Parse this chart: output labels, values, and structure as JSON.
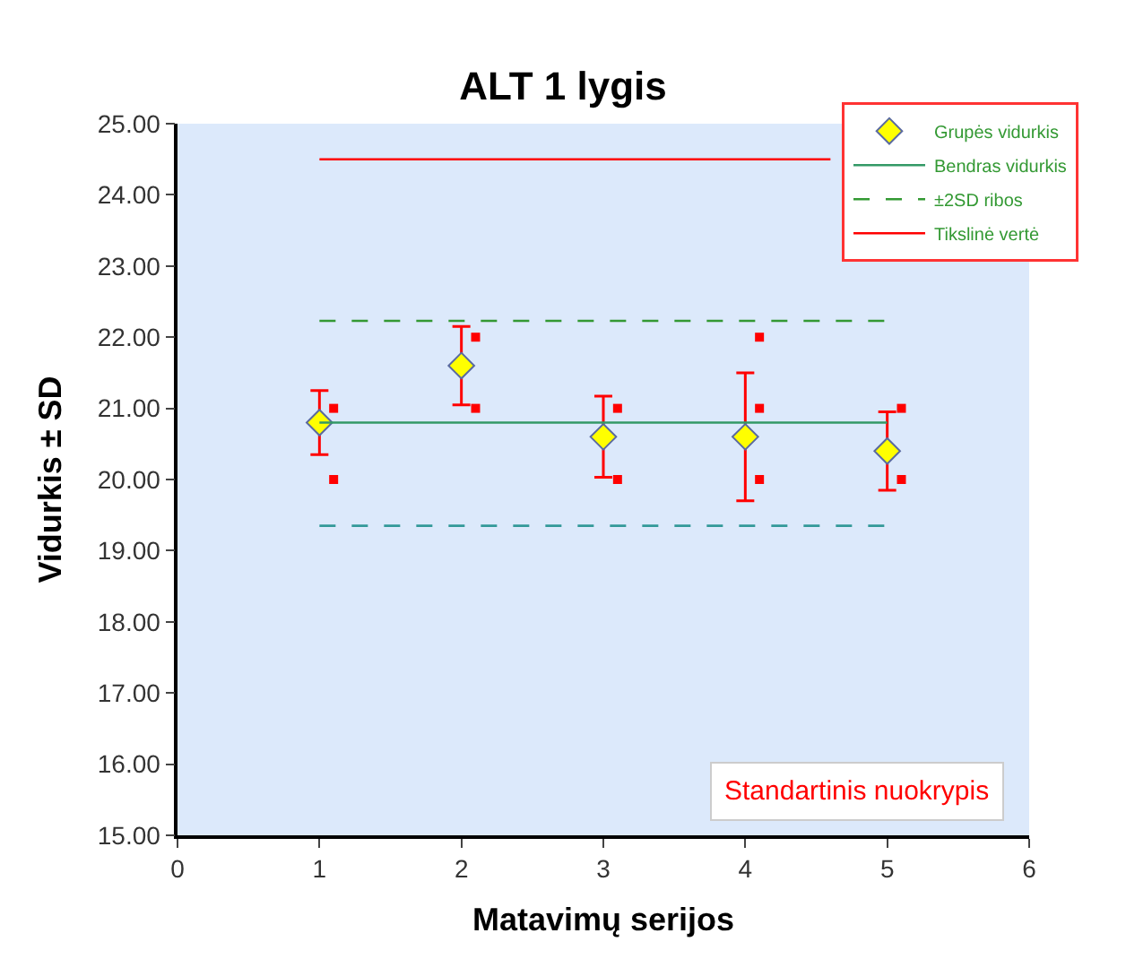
{
  "chart_data": {
    "type": "scatter",
    "title": "ALT 1 lygis",
    "xlabel": "Matavimų serijos",
    "ylabel": "Vidurkis ± SD",
    "xlim": [
      0,
      6
    ],
    "xticks": [
      0,
      1,
      2,
      3,
      4,
      5,
      6
    ],
    "ylim": [
      15,
      25
    ],
    "yticks": [
      {
        "value": 15,
        "label": "15.00"
      },
      {
        "value": 16,
        "label": "16.00"
      },
      {
        "value": 17,
        "label": "17.00"
      },
      {
        "value": 18,
        "label": "18.00"
      },
      {
        "value": 19,
        "label": "19.00"
      },
      {
        "value": 20,
        "label": "20.00"
      },
      {
        "value": 21,
        "label": "21.00"
      },
      {
        "value": 22,
        "label": "22.00"
      },
      {
        "value": 23,
        "label": "23.00"
      },
      {
        "value": 24,
        "label": "24.00"
      },
      {
        "value": 25,
        "label": "25.00"
      }
    ],
    "grid": false,
    "legend": "top right",
    "series": [
      {
        "name": "Grupės vidurkis",
        "marker": "diamond",
        "color": "#ffff00",
        "x": [
          1,
          2,
          3,
          4,
          5
        ],
        "values": [
          20.8,
          21.6,
          20.6,
          20.6,
          20.4
        ],
        "errors": [
          0.45,
          0.55,
          0.57,
          0.9,
          0.55
        ]
      },
      {
        "marker": "square",
        "color": "#ff0000",
        "x": [
          1.1,
          1.1,
          2.1,
          2.1,
          3.1,
          3.1,
          4.1,
          4.1,
          4.1,
          5.1,
          5.1
        ],
        "values": [
          21,
          20,
          22,
          21,
          21,
          20,
          22,
          21,
          20,
          21,
          20
        ]
      },
      {
        "name": "Bendras vidurkis",
        "type": "line",
        "marker": "none",
        "line_style": "solid",
        "color": "#339966",
        "x": [
          1,
          5
        ],
        "values": [
          20.8,
          20.8
        ]
      },
      {
        "name": "±2SD ribos",
        "type": "line",
        "marker": "none",
        "line_style": "dashed",
        "color": "#339933",
        "x": [
          1,
          5
        ],
        "values": [
          22.23,
          22.23
        ]
      },
      {
        "type": "line",
        "marker": "none",
        "line_style": "dashed",
        "color": "#339999",
        "x": [
          1,
          5
        ],
        "values": [
          19.35,
          19.35
        ]
      },
      {
        "name": "Tikslinė vertė",
        "type": "line",
        "marker": "none",
        "line_style": "solid",
        "color": "#ff0000",
        "x": [
          1,
          4.6
        ],
        "values": [
          24.5,
          24.5
        ]
      }
    ],
    "annotations": [
      "Standartinis nuokrypis"
    ]
  }
}
